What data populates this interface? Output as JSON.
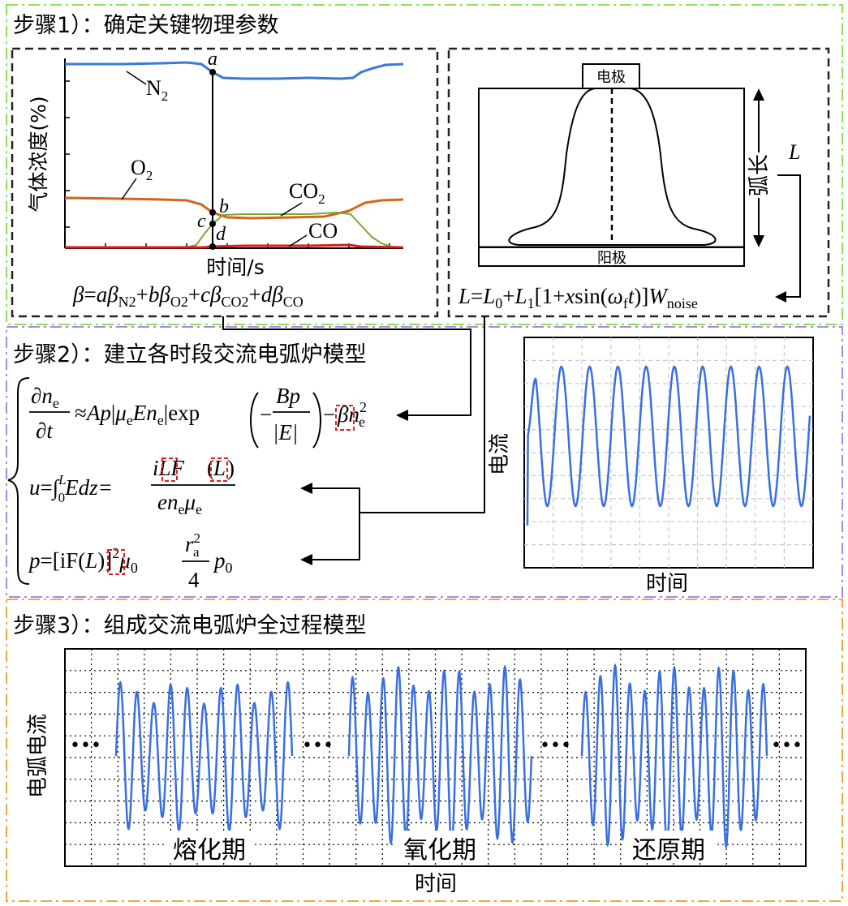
{
  "steps": [
    {
      "label": "步骤1）：确定关键物理参数"
    },
    {
      "label": "步骤2）：建立各时段交流电弧炉模型"
    },
    {
      "label": "步骤3）：组成交流电弧炉全过程模型"
    }
  ],
  "panel_gas": {
    "ylabel": "气体浓度(%)",
    "xlabel": "时间/s",
    "points": [
      "a",
      "b",
      "c",
      "d"
    ],
    "series_labels": {
      "n2": "N",
      "o2": "O",
      "co2": "CO",
      "co": "CO"
    },
    "series_subscripts": {
      "n2": "2",
      "o2": "2",
      "co2": "2"
    },
    "colors": {
      "n2": "#3a78e0",
      "o2": "#d4651b",
      "co2": "#79a82e",
      "co": "#d81c1c"
    },
    "formula": {
      "lhs": "β",
      "eq": "=",
      "a": "a",
      "b": "b",
      "c": "c",
      "d": "d",
      "beta": "β",
      "sub_n2": "N2",
      "sub_o2": "O2",
      "sub_co2": "CO2",
      "sub_co": "CO",
      "plus": "+"
    }
  },
  "panel_arc": {
    "electrode": "电极",
    "anode": "阳极",
    "arc_length": "弧长",
    "L": "L",
    "formula": {
      "L": "L",
      "eq": "=",
      "L0": "L",
      "sub0": "0",
      "plus": "+",
      "L1": "L",
      "sub1": "1",
      "bracket": "[1+",
      "x": "x",
      "sin": "sin(",
      "omega": "ω",
      "subf": "f",
      "t": "t",
      "close": ")]",
      "W": "W",
      "noise": "noise"
    }
  },
  "panel_current": {
    "ylabel": "电流",
    "xlabel": "时间",
    "cycles": 10,
    "color": "#3a6fe0"
  },
  "equations": {
    "e1": {
      "dn": "∂n",
      "e": "e",
      "dt": "∂t",
      "approx": "≈",
      "Ap": "Ap",
      "mu": "μ",
      "En": "En",
      "exp": "exp",
      "minus": "−",
      "Bp": "Bp",
      "absE": "|E|",
      "beta": "β",
      "n": "n",
      "sq": "2"
    },
    "e2": {
      "u": "u",
      "eq": "=∫",
      "lim_low": "0",
      "lim_high": "L",
      "Edz": "Edz=",
      "iLF": "iLF",
      "L": "L",
      "den_e": "en",
      "mu": "μ",
      "sub_e": "e"
    },
    "e3": {
      "p": "p",
      "eq": "=[iF(",
      "L": "L",
      "close": ")]",
      "sq": "2",
      "mu0": "μ",
      "sub0": "0",
      "r": "r",
      "a": "a",
      "four": "4",
      "p0": "p",
      "red": "#e02020"
    }
  },
  "panel_full": {
    "ylabel": "电弧电流",
    "xlabel": "时间",
    "ellipsis": "•••",
    "stages": [
      "熔化期",
      "氧化期",
      "还原期"
    ],
    "color": "#3a6fe0"
  },
  "frame_colors": {
    "step1": "#8de05a",
    "step2": "#a78ae8",
    "step3": "#efa640",
    "inner": "#222222"
  }
}
